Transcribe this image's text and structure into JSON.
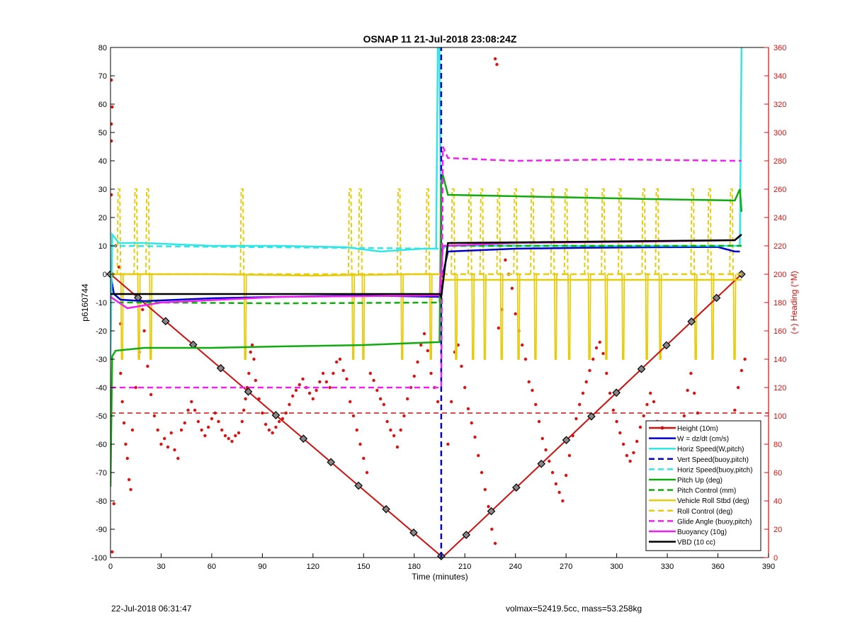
{
  "footer": {
    "left": "22-Jul-2018 06:31:47",
    "right": "volmax=52419.5cc, mass=53.258kg"
  },
  "chart_data": {
    "type": "line",
    "title": "OSNAP 11 21-Jul-2018 23:08:24Z",
    "xlabel": "Time (minutes)",
    "ylabel": "p6160744",
    "y2label": "(+) Heading (°M)",
    "xlim": [
      0,
      390
    ],
    "ylim": [
      -100,
      80
    ],
    "y2lim": [
      0,
      360
    ],
    "xticks": [
      0,
      30,
      60,
      90,
      120,
      150,
      180,
      210,
      240,
      270,
      300,
      330,
      360,
      390
    ],
    "yticks": [
      -100,
      -90,
      -80,
      -70,
      -60,
      -50,
      -40,
      -30,
      -20,
      -10,
      0,
      10,
      20,
      30,
      40,
      50,
      60,
      70,
      80
    ],
    "y2ticks": [
      0,
      20,
      40,
      60,
      80,
      100,
      120,
      140,
      160,
      180,
      200,
      220,
      240,
      260,
      280,
      300,
      320,
      340,
      360
    ],
    "grid": false,
    "legend_position": "bottom-right",
    "series": [
      {
        "name": "Height (10m)",
        "color": "#cc1111",
        "style": "solid",
        "marker": "diamond",
        "x": [
          0,
          196,
          197,
          374
        ],
        "y": [
          0,
          -99.5,
          -99.8,
          0
        ]
      },
      {
        "name": "W = dz/dt (cm/s)",
        "color": "#0000cc",
        "style": "solid",
        "x": [
          0,
          2,
          6,
          20,
          60,
          100,
          150,
          195,
          197,
          200,
          240,
          280,
          320,
          360,
          370,
          373
        ],
        "y": [
          0,
          -7,
          -9,
          -9.5,
          -8.5,
          -8,
          -7.5,
          -8,
          0,
          8,
          9,
          9.3,
          9.5,
          9.6,
          8,
          8
        ]
      },
      {
        "name": "Horiz Speed(W,pitch)",
        "color": "#33e5e5",
        "style": "solid",
        "x": [
          0,
          1,
          5,
          20,
          60,
          100,
          140,
          160,
          185,
          193,
          194,
          195,
          196,
          197,
          200,
          240,
          280,
          320,
          370,
          373,
          374
        ],
        "y": [
          -30,
          14,
          11,
          11,
          10,
          10,
          9.5,
          8,
          9,
          9,
          80,
          80,
          9,
          9,
          10,
          10,
          10,
          10,
          10,
          10,
          80
        ]
      },
      {
        "name": "Vert Speed(buoy,pitch)",
        "color": "#0000cc",
        "style": "dash",
        "x": [
          196,
          196
        ],
        "y": [
          -100,
          80
        ]
      },
      {
        "name": "Horiz Speed(buoy,pitch)",
        "color": "#33e5e5",
        "style": "dash",
        "x": [
          0,
          195,
          197,
          374
        ],
        "y": [
          10,
          9,
          10,
          10
        ]
      },
      {
        "name": "Pitch Up (deg)",
        "color": "#11aa11",
        "style": "solid",
        "x": [
          0,
          1,
          3,
          20,
          60,
          100,
          150,
          193,
          195,
          196,
          197,
          200,
          240,
          280,
          320,
          370,
          373,
          374
        ],
        "y": [
          -75,
          -29,
          -27,
          -26,
          -26,
          -25.5,
          -25,
          -24,
          -24,
          32,
          35,
          28,
          27.5,
          27,
          26.5,
          26,
          30,
          22
        ]
      },
      {
        "name": "Pitch Control (mm)",
        "color": "#11aa11",
        "style": "dash",
        "x": [
          0,
          5,
          30,
          100,
          195,
          197,
          374
        ],
        "y": [
          -8,
          -10,
          -10,
          -10.3,
          -10,
          10,
          10
        ]
      },
      {
        "name": "Vehicle Roll Stbd (deg)",
        "color": "#e5cc11",
        "style": "solid",
        "x": [
          0,
          5,
          60,
          120,
          180,
          195,
          197,
          240,
          300,
          360,
          374
        ],
        "y": [
          0,
          0,
          0,
          -0.5,
          0,
          0,
          -2,
          -2,
          -2,
          -2,
          -2
        ]
      },
      {
        "name": "Roll Control (deg)",
        "color": "#e5cc11",
        "style": "dash",
        "x": [
          0,
          195,
          197,
          374
        ],
        "y": [
          0,
          0,
          0,
          0
        ]
      },
      {
        "name": "Glide Angle (buoy,pitch)",
        "color": "#ee22ee",
        "style": "dash",
        "x": [
          0,
          195,
          196,
          197,
          200,
          240,
          300,
          370,
          374
        ],
        "y": [
          -40,
          -40,
          -40,
          45,
          41,
          40,
          40.5,
          40,
          40
        ]
      },
      {
        "name": "Buoyancy (10g)",
        "color": "#ee22ee",
        "style": "solid",
        "x": [
          0,
          10,
          30,
          100,
          195,
          197,
          240,
          320,
          370,
          374
        ],
        "y": [
          -8,
          -12,
          -10,
          -8,
          -7.5,
          10,
          11,
          11.5,
          12,
          14
        ]
      },
      {
        "name": "VBD (10 cc)",
        "color": "#000000",
        "style": "solid",
        "x": [
          0,
          195,
          196,
          200,
          370,
          374
        ],
        "y": [
          -7,
          -7,
          -8,
          11,
          12,
          14
        ]
      }
    ],
    "roll_spikes_bottom_dive": [
      5,
      15,
      22,
      78,
      142,
      148,
      171,
      188
    ],
    "roll_spikes_bottom_climb": [
      203,
      213,
      220,
      230,
      240,
      250,
      262,
      270,
      282,
      292,
      302,
      316,
      324,
      345,
      355,
      368
    ],
    "heading_mean_line": {
      "color": "#cc1111",
      "style": "dash",
      "y": 102
    },
    "heading_points_axis": "right",
    "heading_points": [
      [
        0.5,
        337
      ],
      [
        1,
        318
      ],
      [
        0.5,
        306
      ],
      [
        0.5,
        294
      ],
      [
        0.5,
        256
      ],
      [
        2,
        38
      ],
      [
        1,
        4
      ],
      [
        3,
        220
      ],
      [
        5,
        205
      ],
      [
        6,
        165
      ],
      [
        6,
        130
      ],
      [
        7,
        110
      ],
      [
        8,
        95
      ],
      [
        9,
        80
      ],
      [
        10,
        70
      ],
      [
        11,
        55
      ],
      [
        12,
        48
      ],
      [
        13,
        90
      ],
      [
        15,
        120
      ],
      [
        17,
        145
      ],
      [
        19,
        175
      ],
      [
        20,
        160
      ],
      [
        22,
        135
      ],
      [
        24,
        115
      ],
      [
        26,
        100
      ],
      [
        28,
        90
      ],
      [
        30,
        80
      ],
      [
        32,
        84
      ],
      [
        34,
        78
      ],
      [
        36,
        88
      ],
      [
        38,
        76
      ],
      [
        40,
        70
      ],
      [
        42,
        90
      ],
      [
        44,
        95
      ],
      [
        46,
        104
      ],
      [
        48,
        110
      ],
      [
        50,
        104
      ],
      [
        52,
        96
      ],
      [
        54,
        90
      ],
      [
        56,
        86
      ],
      [
        58,
        92
      ],
      [
        60,
        98
      ],
      [
        62,
        102
      ],
      [
        64,
        96
      ],
      [
        66,
        90
      ],
      [
        68,
        86
      ],
      [
        70,
        84
      ],
      [
        72,
        82
      ],
      [
        74,
        86
      ],
      [
        76,
        88
      ],
      [
        78,
        96
      ],
      [
        79,
        104
      ],
      [
        80,
        112
      ],
      [
        81,
        120
      ],
      [
        82,
        130
      ],
      [
        83,
        145
      ],
      [
        84,
        150
      ],
      [
        85,
        140
      ],
      [
        86,
        125
      ],
      [
        88,
        112
      ],
      [
        90,
        102
      ],
      [
        92,
        94
      ],
      [
        94,
        90
      ],
      [
        96,
        88
      ],
      [
        98,
        92
      ],
      [
        100,
        96
      ],
      [
        102,
        98
      ],
      [
        104,
        102
      ],
      [
        106,
        108
      ],
      [
        108,
        114
      ],
      [
        110,
        118
      ],
      [
        112,
        122
      ],
      [
        114,
        126
      ],
      [
        116,
        120
      ],
      [
        118,
        116
      ],
      [
        120,
        112
      ],
      [
        122,
        118
      ],
      [
        124,
        124
      ],
      [
        126,
        130
      ],
      [
        128,
        124
      ],
      [
        130,
        120
      ],
      [
        132,
        130
      ],
      [
        134,
        138
      ],
      [
        136,
        140
      ],
      [
        138,
        132
      ],
      [
        140,
        126
      ],
      [
        142,
        110
      ],
      [
        144,
        100
      ],
      [
        146,
        90
      ],
      [
        148,
        80
      ],
      [
        150,
        70
      ],
      [
        152,
        60
      ],
      [
        154,
        130
      ],
      [
        156,
        125
      ],
      [
        158,
        118
      ],
      [
        160,
        112
      ],
      [
        162,
        108
      ],
      [
        164,
        96
      ],
      [
        166,
        90
      ],
      [
        168,
        86
      ],
      [
        170,
        78
      ],
      [
        172,
        90
      ],
      [
        174,
        100
      ],
      [
        176,
        112
      ],
      [
        178,
        120
      ],
      [
        180,
        128
      ],
      [
        182,
        138
      ],
      [
        184,
        150
      ],
      [
        186,
        158
      ],
      [
        188,
        146
      ],
      [
        190,
        130
      ],
      [
        192,
        120
      ],
      [
        194,
        110
      ],
      [
        200,
        80
      ],
      [
        202,
        110
      ],
      [
        204,
        145
      ],
      [
        206,
        150
      ],
      [
        208,
        135
      ],
      [
        210,
        120
      ],
      [
        212,
        105
      ],
      [
        214,
        95
      ],
      [
        216,
        85
      ],
      [
        218,
        72
      ],
      [
        220,
        60
      ],
      [
        222,
        48
      ],
      [
        224,
        36
      ],
      [
        226,
        20
      ],
      [
        228,
        10
      ],
      [
        230,
        162
      ],
      [
        232,
        175
      ],
      [
        234,
        210
      ],
      [
        236,
        200
      ],
      [
        238,
        190
      ],
      [
        240,
        172
      ],
      [
        242,
        160
      ],
      [
        244,
        150
      ],
      [
        246,
        140
      ],
      [
        248,
        124
      ],
      [
        250,
        118
      ],
      [
        252,
        108
      ],
      [
        254,
        96
      ],
      [
        256,
        84
      ],
      [
        258,
        76
      ],
      [
        260,
        68
      ],
      [
        262,
        60
      ],
      [
        264,
        52
      ],
      [
        266,
        46
      ],
      [
        268,
        40
      ],
      [
        270,
        58
      ],
      [
        272,
        72
      ],
      [
        274,
        86
      ],
      [
        276,
        98
      ],
      [
        278,
        108
      ],
      [
        280,
        116
      ],
      [
        282,
        124
      ],
      [
        284,
        132
      ],
      [
        286,
        140
      ],
      [
        288,
        148
      ],
      [
        290,
        152
      ],
      [
        292,
        144
      ],
      [
        294,
        130
      ],
      [
        296,
        116
      ],
      [
        298,
        104
      ],
      [
        300,
        96
      ],
      [
        302,
        88
      ],
      [
        304,
        80
      ],
      [
        306,
        72
      ],
      [
        308,
        68
      ],
      [
        310,
        74
      ],
      [
        312,
        82
      ],
      [
        314,
        92
      ],
      [
        316,
        100
      ],
      [
        318,
        108
      ],
      [
        320,
        116
      ],
      [
        322,
        110
      ],
      [
        324,
        96
      ],
      [
        326,
        82
      ],
      [
        328,
        68
      ],
      [
        330,
        56
      ],
      [
        332,
        46
      ],
      [
        334,
        40
      ],
      [
        336,
        60
      ],
      [
        338,
        80
      ],
      [
        340,
        100
      ],
      [
        342,
        118
      ],
      [
        344,
        130
      ],
      [
        346,
        116
      ],
      [
        348,
        102
      ],
      [
        350,
        90
      ],
      [
        352,
        78
      ],
      [
        354,
        66
      ],
      [
        356,
        54
      ],
      [
        358,
        40
      ],
      [
        360,
        30
      ],
      [
        362,
        20
      ],
      [
        364,
        12
      ],
      [
        366,
        6
      ],
      [
        368,
        94
      ],
      [
        370,
        104
      ],
      [
        372,
        120
      ],
      [
        374,
        132
      ],
      [
        376,
        140
      ],
      [
        228,
        352
      ],
      [
        229,
        348
      ]
    ]
  }
}
